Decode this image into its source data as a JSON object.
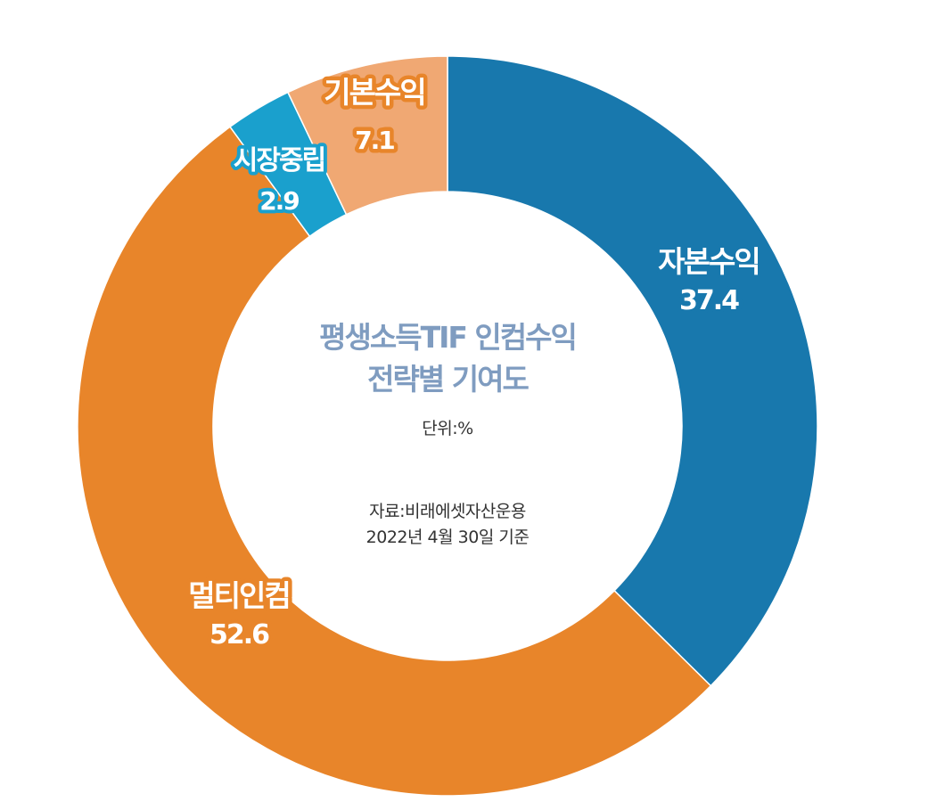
{
  "chart_data": {
    "type": "pie",
    "title": [
      "평생소득TIF 인컴수익",
      "전략별 기여도"
    ],
    "unit_label": "단위:%",
    "source_lines": [
      "자료:비래에셋자산운용",
      "2022년 4월 30일 기준"
    ],
    "slices": [
      {
        "label": "자본수익",
        "value": 37.4,
        "value_label": "37.4",
        "color": "#1878ad",
        "label_stroke": "#1878ad"
      },
      {
        "label": "멀티인컴",
        "value": 52.6,
        "value_label": "52.6",
        "color": "#e8852a",
        "label_stroke": "#e8852a"
      },
      {
        "label": "시장중립",
        "value": 2.9,
        "value_label": "2.9",
        "color": "#1aa0cd",
        "label_stroke": "#1aa0cd"
      },
      {
        "label": "기본수익",
        "value": 7.1,
        "value_label": "7.1",
        "color": "#f0a873",
        "label_stroke": "#e8852a"
      }
    ],
    "start": "top",
    "direction": "clockwise",
    "legend": "none"
  }
}
